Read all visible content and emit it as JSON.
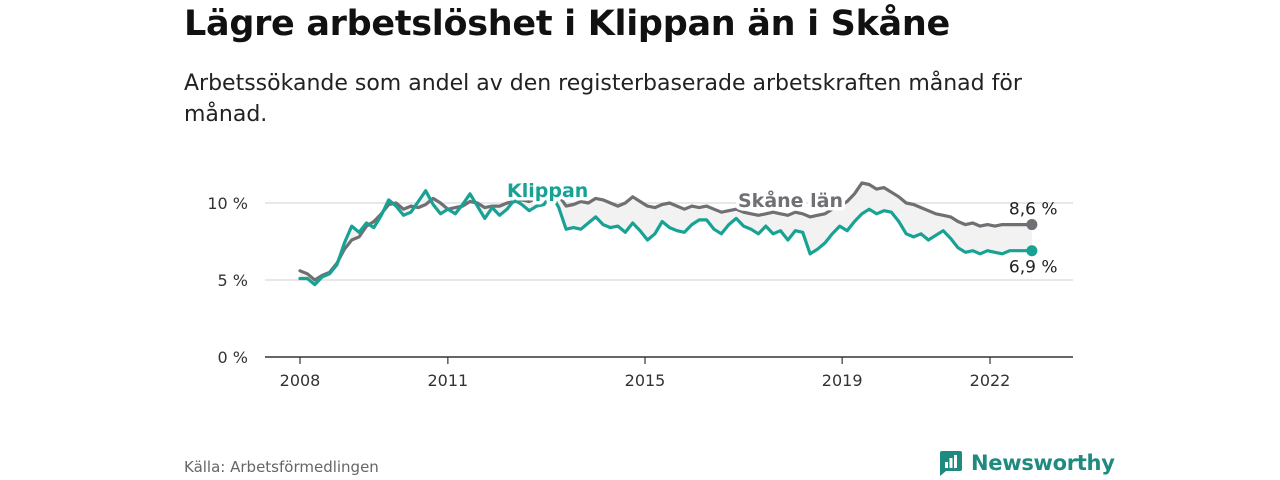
{
  "title": "Lägre arbetslöshet i Klippan än i Skåne",
  "subtitle": "Arbetssökande som andel av den registerbaserade arbetskraften månad för månad.",
  "source": "Källa: Arbetsförmedlingen",
  "brand": "Newsworthy",
  "colors": {
    "klippan": "#17a294",
    "skane": "#707074",
    "brand": "#1f8a80"
  },
  "chart_data": {
    "type": "line",
    "x_ticks": [
      2008,
      2011,
      2015,
      2019,
      2022
    ],
    "y_ticks": [
      0,
      5,
      10
    ],
    "y_tick_labels": [
      "0 %",
      "5 %",
      "10 %"
    ],
    "ylim": [
      0,
      11.5
    ],
    "xlim": [
      2007.5,
      2023.6
    ],
    "series": [
      {
        "name": "Klippan",
        "label": "Klippan",
        "end_label": "6,9 %",
        "x": [
          2008.0,
          2008.15,
          2008.3,
          2008.45,
          2008.6,
          2008.75,
          2008.9,
          2009.05,
          2009.2,
          2009.35,
          2009.5,
          2009.65,
          2009.8,
          2009.95,
          2010.1,
          2010.25,
          2010.4,
          2010.55,
          2010.7,
          2010.85,
          2011.0,
          2011.15,
          2011.3,
          2011.45,
          2011.6,
          2011.75,
          2011.9,
          2012.05,
          2012.2,
          2012.35,
          2012.5,
          2012.65,
          2012.8,
          2012.95,
          2013.1,
          2013.25,
          2013.4,
          2013.55,
          2013.7,
          2013.85,
          2014.0,
          2014.15,
          2014.3,
          2014.45,
          2014.6,
          2014.75,
          2014.9,
          2015.05,
          2015.2,
          2015.35,
          2015.5,
          2015.65,
          2015.8,
          2015.95,
          2016.1,
          2016.25,
          2016.4,
          2016.55,
          2016.7,
          2016.85,
          2017.0,
          2017.15,
          2017.3,
          2017.45,
          2017.6,
          2017.75,
          2017.9,
          2018.05,
          2018.2,
          2018.35,
          2018.5,
          2018.65,
          2018.8,
          2018.95,
          2019.1,
          2019.25,
          2019.4,
          2019.55,
          2019.7,
          2019.85,
          2020.0,
          2020.15,
          2020.3,
          2020.45,
          2020.6,
          2020.75,
          2020.9,
          2021.05,
          2021.2,
          2021.35,
          2021.5,
          2021.65,
          2021.8,
          2021.95,
          2022.1,
          2022.25,
          2022.4,
          2022.55,
          2022.7,
          2022.85
        ],
        "values": [
          5.1,
          5.1,
          4.7,
          5.2,
          5.4,
          6.0,
          7.4,
          8.5,
          8.1,
          8.7,
          8.4,
          9.2,
          10.2,
          9.8,
          9.2,
          9.4,
          10.1,
          10.8,
          9.9,
          9.3,
          9.6,
          9.3,
          9.9,
          10.6,
          9.8,
          9.0,
          9.7,
          9.2,
          9.6,
          10.2,
          9.9,
          9.5,
          9.8,
          9.9,
          10.6,
          9.7,
          8.3,
          8.4,
          8.3,
          8.7,
          9.1,
          8.6,
          8.4,
          8.5,
          8.1,
          8.7,
          8.2,
          7.6,
          8.0,
          8.8,
          8.4,
          8.2,
          8.1,
          8.6,
          8.9,
          8.9,
          8.3,
          8.0,
          8.6,
          9.0,
          8.5,
          8.3,
          8.0,
          8.5,
          8.0,
          8.2,
          7.6,
          8.2,
          8.1,
          6.7,
          7.0,
          7.4,
          8.0,
          8.5,
          8.2,
          8.8,
          9.3,
          9.6,
          9.3,
          9.5,
          9.4,
          8.8,
          8.0,
          7.8,
          8.0,
          7.6,
          7.9,
          8.2,
          7.7,
          7.1,
          6.8,
          6.9,
          6.7,
          6.9,
          6.8,
          6.7,
          6.9,
          6.9,
          6.9,
          6.9
        ]
      },
      {
        "name": "Skåne län",
        "label": "Skåne län",
        "end_label": "8,6 %",
        "x": [
          2008.0,
          2008.15,
          2008.3,
          2008.45,
          2008.6,
          2008.75,
          2008.9,
          2009.05,
          2009.2,
          2009.35,
          2009.5,
          2009.65,
          2009.8,
          2009.95,
          2010.1,
          2010.25,
          2010.4,
          2010.55,
          2010.7,
          2010.85,
          2011.0,
          2011.15,
          2011.3,
          2011.45,
          2011.6,
          2011.75,
          2011.9,
          2012.05,
          2012.2,
          2012.35,
          2012.5,
          2012.65,
          2012.8,
          2012.95,
          2013.1,
          2013.25,
          2013.4,
          2013.55,
          2013.7,
          2013.85,
          2014.0,
          2014.15,
          2014.3,
          2014.45,
          2014.6,
          2014.75,
          2014.9,
          2015.05,
          2015.2,
          2015.35,
          2015.5,
          2015.65,
          2015.8,
          2015.95,
          2016.1,
          2016.25,
          2016.4,
          2016.55,
          2016.7,
          2016.85,
          2017.0,
          2017.15,
          2017.3,
          2017.45,
          2017.6,
          2017.75,
          2017.9,
          2018.05,
          2018.2,
          2018.35,
          2018.5,
          2018.65,
          2018.8,
          2018.95,
          2019.1,
          2019.25,
          2019.4,
          2019.55,
          2019.7,
          2019.85,
          2020.0,
          2020.15,
          2020.3,
          2020.45,
          2020.6,
          2020.75,
          2020.9,
          2021.05,
          2021.2,
          2021.35,
          2021.5,
          2021.65,
          2021.8,
          2021.95,
          2022.1,
          2022.25,
          2022.4,
          2022.55,
          2022.7,
          2022.85
        ],
        "values": [
          5.6,
          5.4,
          5.0,
          5.3,
          5.5,
          6.1,
          7.0,
          7.6,
          7.8,
          8.5,
          8.8,
          9.3,
          9.9,
          10.0,
          9.6,
          9.8,
          9.7,
          9.9,
          10.3,
          10.0,
          9.6,
          9.7,
          9.8,
          10.1,
          10.0,
          9.7,
          9.8,
          9.8,
          10.0,
          10.1,
          10.2,
          10.1,
          10.3,
          10.4,
          10.7,
          10.5,
          9.8,
          9.9,
          10.1,
          10.0,
          10.3,
          10.2,
          10.0,
          9.8,
          10.0,
          10.4,
          10.1,
          9.8,
          9.7,
          9.9,
          10.0,
          9.8,
          9.6,
          9.8,
          9.7,
          9.8,
          9.6,
          9.4,
          9.5,
          9.6,
          9.4,
          9.3,
          9.2,
          9.3,
          9.4,
          9.3,
          9.2,
          9.4,
          9.3,
          9.1,
          9.2,
          9.3,
          9.6,
          9.8,
          10.1,
          10.6,
          11.3,
          11.2,
          10.9,
          11.0,
          10.7,
          10.4,
          10.0,
          9.9,
          9.7,
          9.5,
          9.3,
          9.2,
          9.1,
          8.8,
          8.6,
          8.7,
          8.5,
          8.6,
          8.5,
          8.6,
          8.6,
          8.6,
          8.6,
          8.6
        ]
      }
    ]
  }
}
